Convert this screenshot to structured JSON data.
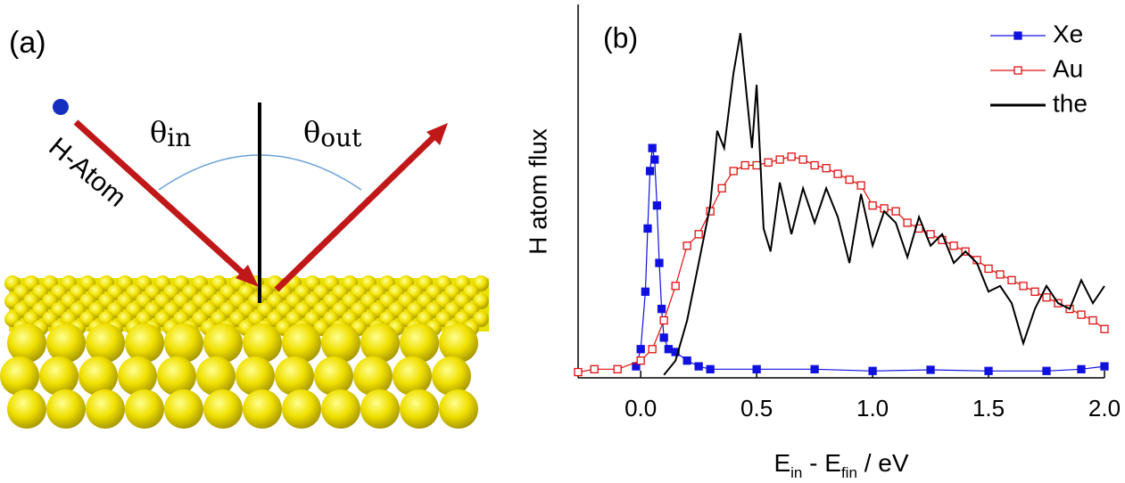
{
  "panel_a": {
    "label": "(a)",
    "atom_label": "H-Atom",
    "theta_in": [
      "θ",
      "in"
    ],
    "theta_out": [
      "θ",
      "out"
    ]
  },
  "chart_data": {
    "type": "line",
    "panel_label": "(b)",
    "ylabel": "H atom flux",
    "xlabel": [
      "E",
      "in",
      " - E",
      "fin",
      " / eV"
    ],
    "xlim": [
      -0.27,
      2.0
    ],
    "ylim": [
      0,
      6.5
    ],
    "xticks": [
      {
        "value": 0,
        "label": "0.0"
      },
      {
        "value": 0.5,
        "label": "0.5"
      },
      {
        "value": 1,
        "label": "1.0"
      },
      {
        "value": 1.5,
        "label": "1.5"
      },
      {
        "value": 2,
        "label": "2.0"
      }
    ],
    "legend": "top-right",
    "series": [
      {
        "name": "Xe",
        "color": "#1010e0",
        "marker": "filled-square",
        "x": [
          -0.02,
          0.0,
          0.02,
          0.03,
          0.04,
          0.05,
          0.06,
          0.07,
          0.08,
          0.09,
          0.1,
          0.12,
          0.15,
          0.2,
          0.25,
          0.3,
          0.5,
          0.75,
          1.0,
          1.25,
          1.5,
          1.75,
          1.9,
          2.0
        ],
        "values": [
          0.2,
          0.5,
          1.5,
          2.6,
          3.6,
          4.0,
          3.8,
          3.0,
          2.0,
          1.2,
          0.7,
          0.5,
          0.45,
          0.3,
          0.2,
          0.15,
          0.15,
          0.15,
          0.12,
          0.14,
          0.12,
          0.12,
          0.15,
          0.2
        ]
      },
      {
        "name": "Au",
        "color": "#e01010",
        "marker": "open-square",
        "x": [
          -0.27,
          -0.2,
          -0.1,
          0.0,
          0.05,
          0.1,
          0.15,
          0.2,
          0.25,
          0.3,
          0.35,
          0.4,
          0.45,
          0.5,
          0.55,
          0.6,
          0.65,
          0.7,
          0.75,
          0.8,
          0.85,
          0.9,
          0.95,
          1.0,
          1.05,
          1.1,
          1.15,
          1.2,
          1.25,
          1.3,
          1.35,
          1.4,
          1.45,
          1.5,
          1.55,
          1.6,
          1.65,
          1.7,
          1.75,
          1.8,
          1.85,
          1.9,
          1.95,
          2.0
        ],
        "values": [
          0.1,
          0.15,
          0.15,
          0.3,
          0.5,
          1.0,
          1.6,
          2.3,
          2.5,
          2.9,
          3.3,
          3.6,
          3.7,
          3.7,
          3.75,
          3.8,
          3.85,
          3.8,
          3.7,
          3.65,
          3.55,
          3.45,
          3.35,
          3.0,
          2.95,
          2.9,
          2.7,
          2.6,
          2.5,
          2.4,
          2.3,
          2.2,
          2.05,
          1.9,
          1.8,
          1.7,
          1.6,
          1.5,
          1.4,
          1.3,
          1.2,
          1.1,
          1.0,
          0.85
        ]
      },
      {
        "name": "the",
        "color": "#000000",
        "marker": "none",
        "x": [
          0.1,
          0.15,
          0.2,
          0.25,
          0.3,
          0.33,
          0.36,
          0.4,
          0.43,
          0.45,
          0.48,
          0.5,
          0.53,
          0.56,
          0.6,
          0.65,
          0.7,
          0.75,
          0.8,
          0.85,
          0.9,
          0.95,
          1.0,
          1.05,
          1.1,
          1.15,
          1.2,
          1.25,
          1.3,
          1.35,
          1.4,
          1.45,
          1.5,
          1.55,
          1.6,
          1.65,
          1.7,
          1.75,
          1.8,
          1.85,
          1.9,
          1.95,
          2.0
        ],
        "values": [
          0.05,
          0.3,
          1.0,
          2.0,
          3.0,
          4.3,
          4.0,
          5.3,
          6.0,
          5.2,
          4.0,
          5.1,
          2.6,
          2.2,
          3.4,
          2.5,
          3.3,
          2.7,
          3.3,
          2.8,
          2.0,
          3.2,
          2.3,
          2.9,
          2.7,
          2.1,
          2.8,
          2.3,
          2.5,
          2.0,
          2.2,
          2.0,
          1.5,
          1.6,
          1.3,
          0.6,
          1.2,
          1.6,
          1.3,
          1.2,
          1.7,
          1.3,
          1.6
        ]
      }
    ]
  }
}
